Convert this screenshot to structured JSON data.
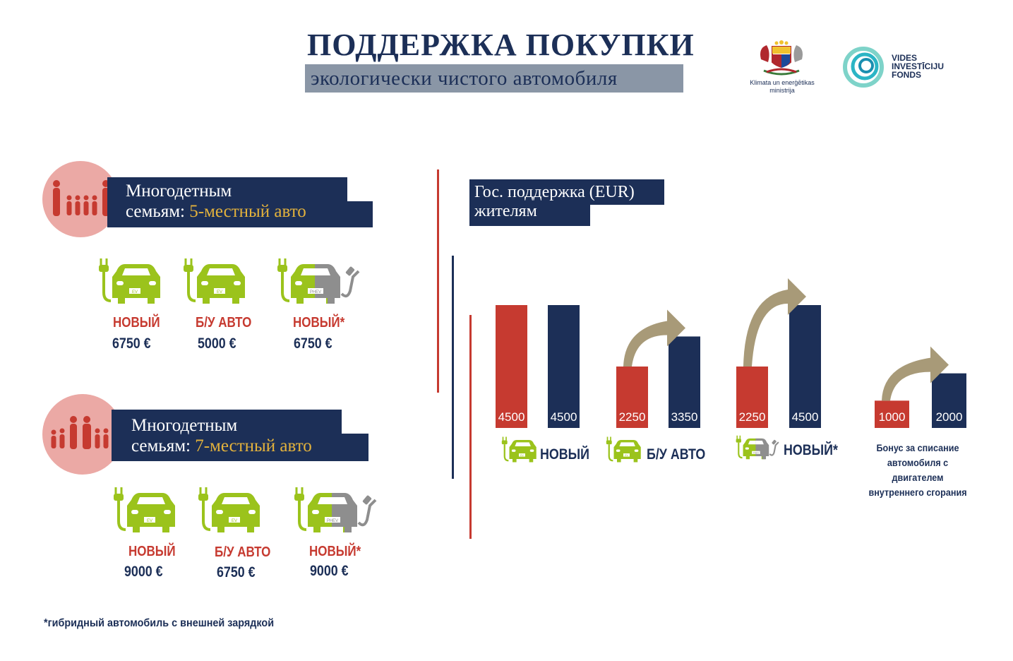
{
  "header": {
    "title": "ПОДДЕРЖКА ПОКУПКИ",
    "subtitle": "экологически чистого автомобиля"
  },
  "logos": {
    "ministry": "Klimata un enerģētikas ministrija",
    "ministry_line1": "Klimata un enerģētikas",
    "ministry_line2": "ministrija",
    "fund_line1": "VIDES",
    "fund_line2": "INVESTĪCIJU",
    "fund_line3": "FONDS"
  },
  "sections": [
    {
      "banner_line1": "Многодетным",
      "banner_line2_prefix": "семьям: ",
      "banner_line2_accent": "5-местный авто",
      "icon": "family-5-icon",
      "items": [
        {
          "icon": "ev-car-icon",
          "badge": "EV",
          "label": "НОВЫЙ",
          "amount": "6750"
        },
        {
          "icon": "ev-car-icon",
          "badge": "EV",
          "label": "Б/У АВТО",
          "amount": "5000"
        },
        {
          "icon": "phev-car-icon",
          "badge": "PHEV",
          "label": "НОВЫЙ*",
          "amount": "6750"
        }
      ]
    },
    {
      "banner_line1": "Многодетным",
      "banner_line2_prefix": "семьям: ",
      "banner_line2_accent": "7-местный авто",
      "icon": "family-7-icon",
      "items": [
        {
          "icon": "ev-car-icon",
          "badge": "EV",
          "label": "НОВЫЙ",
          "amount": "9000"
        },
        {
          "icon": "ev-car-icon",
          "badge": "EV",
          "label": "Б/У АВТО",
          "amount": "6750"
        },
        {
          "icon": "phev-car-icon",
          "badge": "PHEV",
          "label": "НОВЫЙ*",
          "amount": "9000"
        }
      ]
    }
  ],
  "currency_symbol": "€",
  "footnote": "*гибридный автомобиль с внешней зарядкой",
  "chart_data": {
    "type": "bar",
    "title_line1": "Гос. поддержка (EUR)",
    "title_line2": "жителям",
    "categories": [
      "НОВЫЙ",
      "Б/У АВТО",
      "НОВЫЙ*",
      "Бонус за списание автомобиля с двигателем внутреннего сгорания"
    ],
    "category_icons": [
      "ev-car-icon",
      "ev-car-icon",
      "phev-car-icon",
      ""
    ],
    "series": [
      {
        "values": [
          4500,
          2250,
          2250,
          1000
        ],
        "color": "#c63a30"
      },
      {
        "values": [
          4500,
          3350,
          4500,
          2000
        ],
        "color": "#1c2f57"
      }
    ],
    "arrows_between_series": [
      false,
      true,
      true,
      true
    ],
    "arrow_color": "#a89a78"
  },
  "colors": {
    "navy": "#1c2f57",
    "red": "#c63a30",
    "lime": "#9bc31c",
    "gray": "#8e8e8e",
    "gold": "#e3b23c",
    "pink": "#eba9a5"
  }
}
